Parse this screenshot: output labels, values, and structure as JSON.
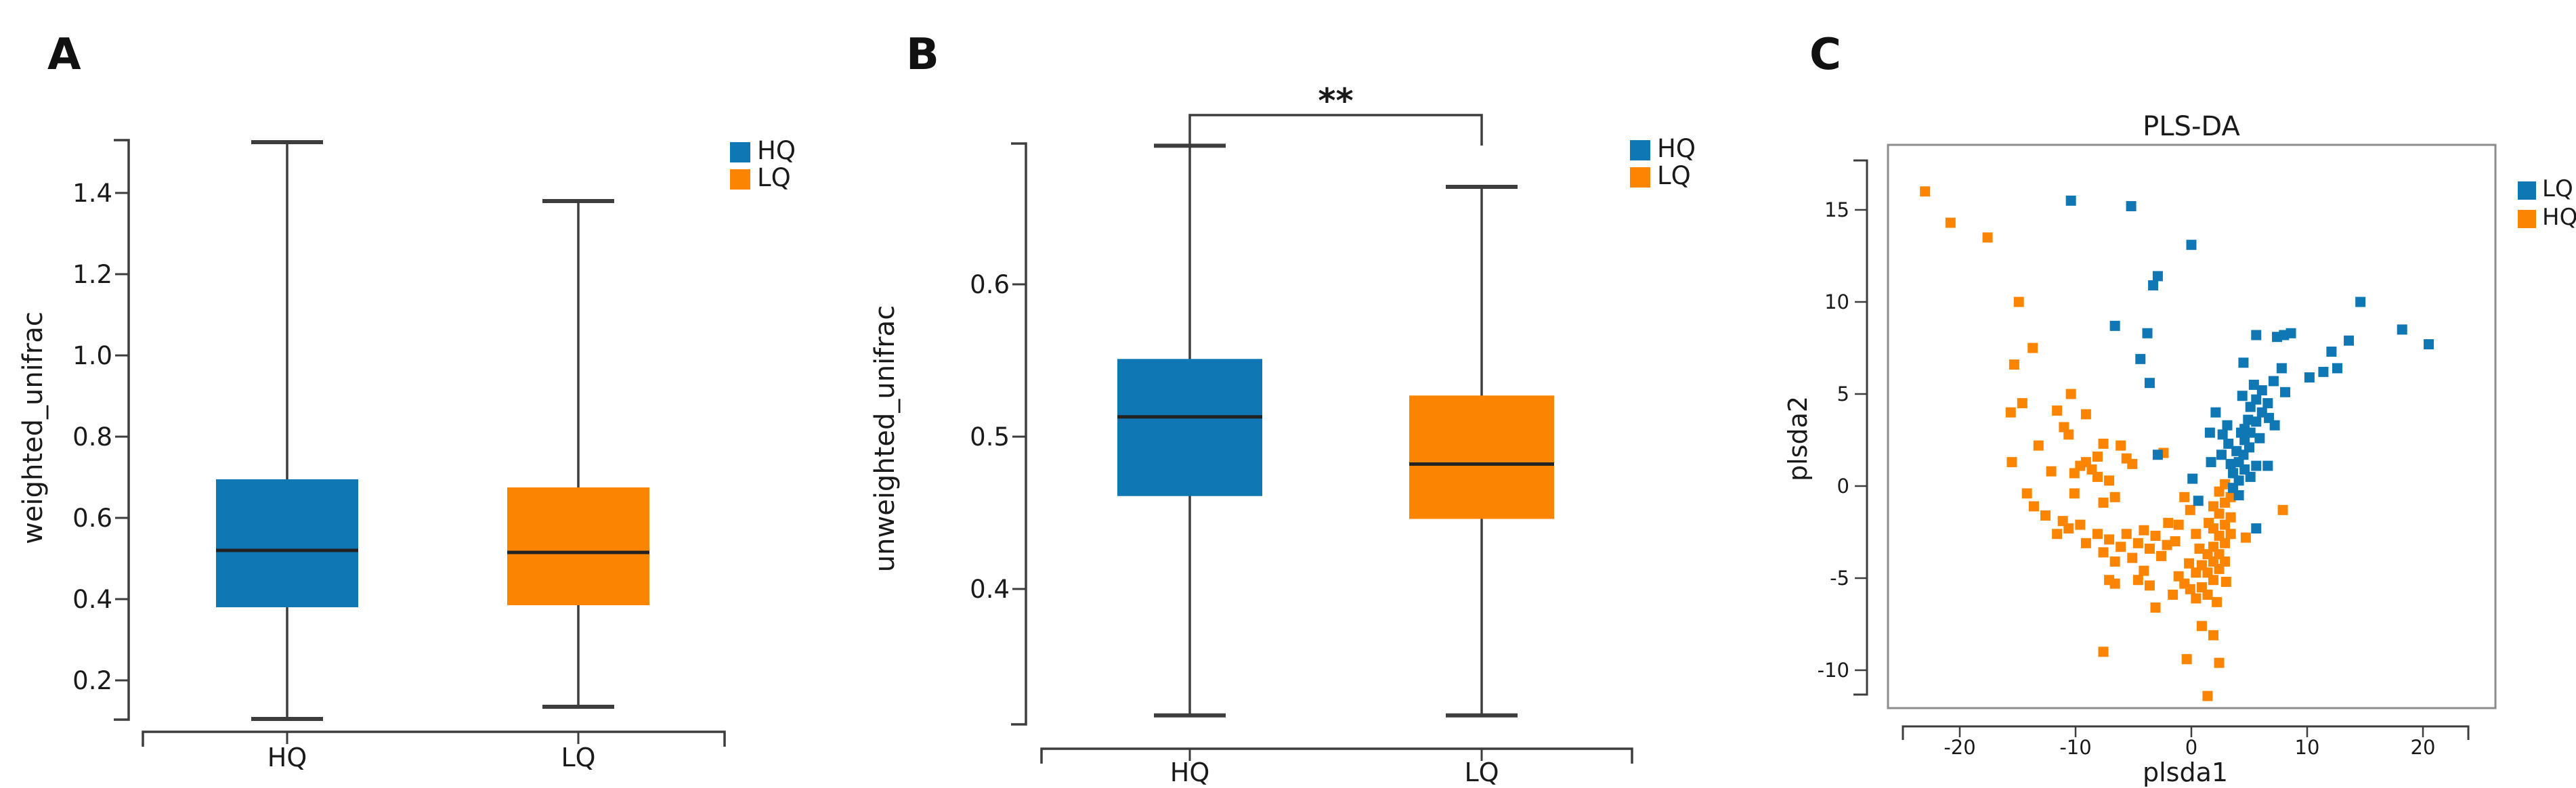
{
  "figure": {
    "background": "#ffffff",
    "colors": {
      "blue": "#0f78b4",
      "orange": "#fb8500",
      "line": "#3d3d3d",
      "median": "#222222",
      "frame": "#8c8c8c",
      "text": "#1a1a1a"
    }
  },
  "chart_data": [
    {
      "panel_label": "A",
      "type": "boxplot",
      "ylabel": "weighted_unifrac",
      "categories": [
        "HQ",
        "LQ"
      ],
      "yticks": [
        0.2,
        0.4,
        0.6,
        0.8,
        1.0,
        1.2,
        1.4
      ],
      "ytick_labels": [
        "0.2",
        "0.4",
        "0.6",
        "0.8",
        "1.0",
        "1.2",
        "1.4"
      ],
      "ylim": [
        0.1,
        1.53
      ],
      "legend": [
        {
          "label": "HQ",
          "color_key": "blue"
        },
        {
          "label": "LQ",
          "color_key": "orange"
        }
      ],
      "boxes": [
        {
          "category": "HQ",
          "color_key": "blue",
          "whisker_low": 0.105,
          "q1": 0.38,
          "median": 0.52,
          "q3": 0.695,
          "whisker_high": 1.525
        },
        {
          "category": "LQ",
          "color_key": "orange",
          "whisker_low": 0.135,
          "q1": 0.385,
          "median": 0.515,
          "q3": 0.675,
          "whisker_high": 1.38
        }
      ]
    },
    {
      "panel_label": "B",
      "type": "boxplot",
      "ylabel": "unweighted_unifrac",
      "categories": [
        "HQ",
        "LQ"
      ],
      "yticks": [
        0.4,
        0.5,
        0.6
      ],
      "ytick_labels": [
        "0.4",
        "0.5",
        "0.6"
      ],
      "ylim": [
        0.31,
        0.693
      ],
      "significance": {
        "label": "**",
        "between": [
          "HQ",
          "LQ"
        ]
      },
      "legend": [
        {
          "label": "HQ",
          "color_key": "blue"
        },
        {
          "label": "LQ",
          "color_key": "orange"
        }
      ],
      "boxes": [
        {
          "category": "HQ",
          "color_key": "blue",
          "whisker_low": 0.317,
          "q1": 0.461,
          "median": 0.513,
          "q3": 0.551,
          "whisker_high": 0.691
        },
        {
          "category": "LQ",
          "color_key": "orange",
          "whisker_low": 0.317,
          "q1": 0.446,
          "median": 0.482,
          "q3": 0.527,
          "whisker_high": 0.664
        }
      ]
    },
    {
      "panel_label": "C",
      "type": "scatter",
      "title": "PLS-DA",
      "xlabel": "plsda1",
      "ylabel": "plsda2",
      "xticks": [
        -20,
        -10,
        0,
        10,
        20
      ],
      "xtick_labels": [
        "-20",
        "-10",
        "0",
        "10",
        "20"
      ],
      "yticks": [
        -10,
        -5,
        0,
        5,
        10,
        15
      ],
      "ytick_labels": [
        "-10",
        "-5",
        "0",
        "5",
        "10",
        "15"
      ],
      "xlim": [
        -26,
        26.3
      ],
      "ylim": [
        -12,
        18.5
      ],
      "legend": [
        {
          "label": "LQ",
          "color_key": "blue"
        },
        {
          "label": "HQ",
          "color_key": "orange"
        }
      ],
      "series": [
        {
          "name": "LQ",
          "color_key": "blue",
          "points": [
            [
              -10.4,
              15.5
            ],
            [
              -5.2,
              15.2
            ],
            [
              0,
              13.1
            ],
            [
              -2.9,
              11.4
            ],
            [
              -3.3,
              10.9
            ],
            [
              -6.6,
              8.7
            ],
            [
              -3.8,
              8.3
            ],
            [
              -4.4,
              6.9
            ],
            [
              -3.6,
              5.6
            ],
            [
              14.6,
              10.0
            ],
            [
              18.2,
              8.5
            ],
            [
              20.5,
              7.7
            ],
            [
              13.6,
              7.9
            ],
            [
              12.1,
              7.3
            ],
            [
              11.4,
              6.2
            ],
            [
              10.2,
              5.9
            ],
            [
              12.6,
              6.4
            ],
            [
              8.0,
              8.2
            ],
            [
              8.6,
              8.3
            ],
            [
              7.4,
              8.1
            ],
            [
              5.6,
              8.2
            ],
            [
              4.5,
              6.7
            ],
            [
              7.8,
              6.4
            ],
            [
              7.1,
              5.7
            ],
            [
              8.1,
              5.1
            ],
            [
              6.1,
              5.2
            ],
            [
              5.6,
              4.7
            ],
            [
              6.6,
              4.5
            ],
            [
              5.1,
              4.3
            ],
            [
              6.1,
              4.0
            ],
            [
              6.7,
              3.7
            ],
            [
              5.6,
              3.5
            ],
            [
              7.2,
              3.3
            ],
            [
              2.1,
              4.0
            ],
            [
              3.1,
              3.3
            ],
            [
              1.6,
              2.9
            ],
            [
              2.6,
              1.7
            ],
            [
              1.7,
              1.3
            ],
            [
              -2.9,
              1.7
            ],
            [
              4.6,
              3.1
            ],
            [
              5.1,
              2.9
            ],
            [
              4.6,
              2.5
            ],
            [
              5.0,
              2.1
            ],
            [
              4.5,
              1.7
            ],
            [
              4.1,
              1.3
            ],
            [
              4.6,
              0.9
            ],
            [
              5.6,
              1.1
            ],
            [
              5.1,
              0.5
            ],
            [
              4.1,
              0.3
            ],
            [
              3.6,
              0.7
            ],
            [
              3.6,
              -0.1
            ],
            [
              4.1,
              -0.5
            ],
            [
              0.1,
              0.4
            ],
            [
              0.6,
              -0.8
            ],
            [
              5.6,
              -2.3
            ],
            [
              6.6,
              1.1
            ],
            [
              3.2,
              2.3
            ],
            [
              2.7,
              2.8
            ],
            [
              3.9,
              1.9
            ],
            [
              4.3,
              2.9
            ],
            [
              3.4,
              1.2
            ],
            [
              4.9,
              3.6
            ],
            [
              5.9,
              2.6
            ],
            [
              4.4,
              4.9
            ],
            [
              5.4,
              5.5
            ]
          ]
        },
        {
          "name": "HQ",
          "color_key": "orange",
          "points": [
            [
              -23,
              16
            ],
            [
              -20.8,
              14.3
            ],
            [
              -17.6,
              13.5
            ],
            [
              -14.9,
              10
            ],
            [
              -15.3,
              6.6
            ],
            [
              -14.6,
              4.5
            ],
            [
              -15.6,
              4.0
            ],
            [
              -13.7,
              7.5
            ],
            [
              -15.5,
              1.3
            ],
            [
              -13.2,
              2.2
            ],
            [
              -14.2,
              -0.4
            ],
            [
              -13.6,
              -1.1
            ],
            [
              -12.1,
              0.8
            ],
            [
              -12.6,
              -1.6
            ],
            [
              -11.6,
              4.1
            ],
            [
              -11.0,
              3.2
            ],
            [
              -10.4,
              5.0
            ],
            [
              -10.6,
              2.8
            ],
            [
              -10.1,
              0.7
            ],
            [
              -10.1,
              -0.4
            ],
            [
              -9.6,
              1.1
            ],
            [
              -9.1,
              3.9
            ],
            [
              -9.1,
              1.3
            ],
            [
              -8.6,
              0.9
            ],
            [
              -8.1,
              1.6
            ],
            [
              -8.1,
              0.5
            ],
            [
              -7.6,
              2.3
            ],
            [
              -7.1,
              0.3
            ],
            [
              -7.6,
              -0.9
            ],
            [
              -6.6,
              -0.6
            ],
            [
              -6.1,
              2.2
            ],
            [
              -5.6,
              1.5
            ],
            [
              -5.1,
              1.2
            ],
            [
              -11.1,
              -1.9
            ],
            [
              -11.6,
              -2.6
            ],
            [
              -10.6,
              -2.3
            ],
            [
              -9.6,
              -2.1
            ],
            [
              -9.1,
              -3.1
            ],
            [
              -8.1,
              -2.6
            ],
            [
              -7.6,
              -3.6
            ],
            [
              -7.1,
              -2.9
            ],
            [
              -6.6,
              -4.1
            ],
            [
              -6.1,
              -3.3
            ],
            [
              -5.6,
              -2.6
            ],
            [
              -5.1,
              -3.9
            ],
            [
              -4.6,
              -3.1
            ],
            [
              -4.1,
              -2.4
            ],
            [
              -3.6,
              -3.4
            ],
            [
              -3.1,
              -2.7
            ],
            [
              -2.6,
              -3.8
            ],
            [
              -2.1,
              -3.2
            ],
            [
              -4.6,
              -5.1
            ],
            [
              -4.1,
              -4.6
            ],
            [
              -3.6,
              -5.4
            ],
            [
              -6.6,
              -5.3
            ],
            [
              -7.1,
              -5.1
            ],
            [
              -3.1,
              -6.6
            ],
            [
              -1.6,
              -5.9
            ],
            [
              -1.1,
              -4.9
            ],
            [
              -0.6,
              -5.3
            ],
            [
              -0.1,
              -5.6
            ],
            [
              0.4,
              -6.1
            ],
            [
              0.9,
              -5.5
            ],
            [
              1.4,
              -5.9
            ],
            [
              0.4,
              -4.7
            ],
            [
              0.9,
              -4.3
            ],
            [
              1.4,
              -4.7
            ],
            [
              1.9,
              -5.1
            ],
            [
              1.9,
              -4.1
            ],
            [
              2.4,
              -4.5
            ],
            [
              1.4,
              -3.7
            ],
            [
              1.9,
              -3.3
            ],
            [
              2.4,
              -3.7
            ],
            [
              2.9,
              -4.1
            ],
            [
              2.9,
              -3.1
            ],
            [
              2.4,
              -2.7
            ],
            [
              1.9,
              -2.3
            ],
            [
              2.9,
              -2.1
            ],
            [
              3.4,
              -2.6
            ],
            [
              3.4,
              -1.7
            ],
            [
              2.4,
              -1.5
            ],
            [
              1.9,
              -1.1
            ],
            [
              2.9,
              -0.9
            ],
            [
              3.4,
              -0.6
            ],
            [
              2.4,
              -0.3
            ],
            [
              2.9,
              0.1
            ],
            [
              -2.4,
              1.8
            ],
            [
              -0.6,
              -0.6
            ],
            [
              -0.1,
              -1.3
            ],
            [
              -1.1,
              -2.1
            ],
            [
              0.4,
              -2.6
            ],
            [
              0.9,
              -7.6
            ],
            [
              1.9,
              -8.1
            ],
            [
              -0.4,
              -9.4
            ],
            [
              2.4,
              -9.6
            ],
            [
              1.4,
              -11.4
            ],
            [
              -7.6,
              -9.0
            ],
            [
              4.7,
              -2.8
            ],
            [
              7.9,
              -1.3
            ],
            [
              1.5,
              -2.0
            ],
            [
              0.7,
              -3.4
            ],
            [
              -0.2,
              -4.2
            ],
            [
              2.2,
              -6.3
            ],
            [
              3.0,
              -5.2
            ],
            [
              -2.0,
              -2.0
            ],
            [
              -1.4,
              -3.0
            ]
          ]
        }
      ]
    }
  ]
}
